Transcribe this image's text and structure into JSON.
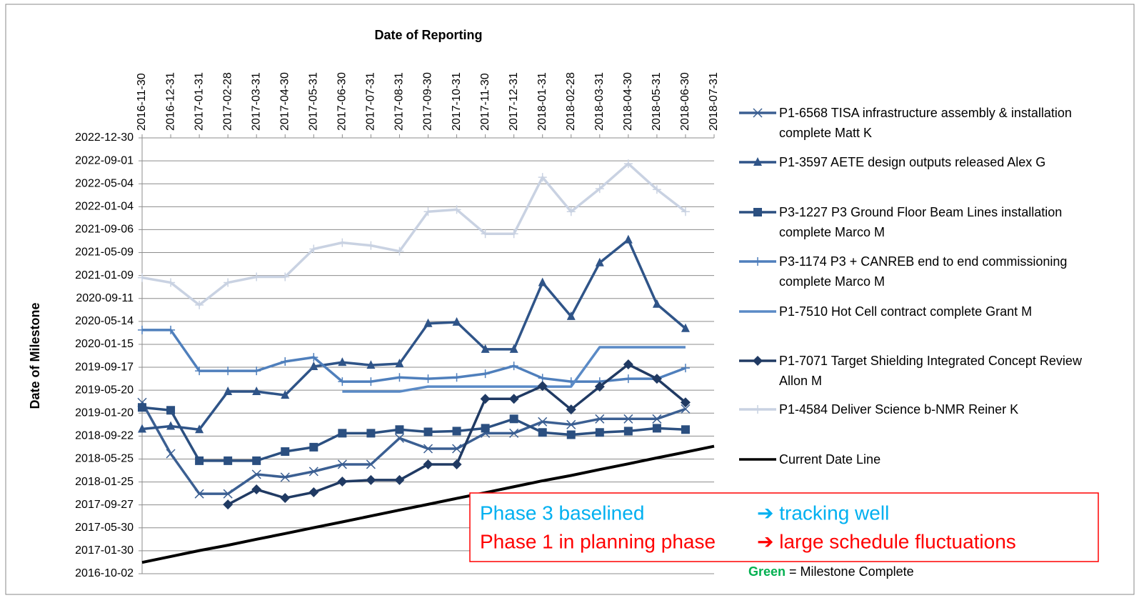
{
  "chart_data": {
    "type": "line",
    "x_title": "Date of Reporting",
    "y_title": "Date of Milestone",
    "categories": [
      "2016-11-30",
      "2016-12-31",
      "2017-01-31",
      "2017-02-28",
      "2017-03-31",
      "2017-04-30",
      "2017-05-31",
      "2017-06-30",
      "2017-07-31",
      "2017-08-31",
      "2017-09-30",
      "2017-10-31",
      "2017-11-30",
      "2017-12-31",
      "2018-01-31",
      "2018-02-28",
      "2018-03-31",
      "2018-04-30",
      "2018-05-31",
      "2018-06-30",
      "2018-07-31"
    ],
    "ylim": [
      "2016-10-02",
      "2022-12-30"
    ],
    "yticks": [
      "2016-10-02",
      "2017-01-30",
      "2017-05-30",
      "2017-09-27",
      "2018-01-25",
      "2018-05-25",
      "2018-09-22",
      "2019-01-20",
      "2019-05-20",
      "2019-09-17",
      "2020-01-15",
      "2020-05-14",
      "2020-09-11",
      "2021-01-09",
      "2021-05-09",
      "2021-09-06",
      "2022-01-04",
      "2022-05-04",
      "2022-09-01",
      "2022-12-30"
    ],
    "grid": true,
    "legend": "right",
    "series": [
      {
        "name": "P1-6568 TISA infrastructure assembly & installation complete Matt K",
        "color": "#3b5f92",
        "marker": "x",
        "values": [
          "2019-03-17",
          "2018-06-22",
          "2017-11-24",
          "2017-11-24",
          "2018-03-06",
          "2018-02-19",
          "2018-03-21",
          "2018-04-27",
          "2018-04-27",
          "2018-09-11",
          "2018-07-18",
          "2018-07-18",
          "2018-10-07",
          "2018-10-07",
          "2018-12-06",
          "2018-11-21",
          "2018-12-21",
          "2018-12-21",
          "2018-12-21",
          "2019-02-11",
          null
        ]
      },
      {
        "name": "P1-3597 AETE design outputs released Alex G",
        "color": "#2f5488",
        "marker": "triangle",
        "values": [
          "2018-10-29",
          "2018-11-13",
          "2018-10-26",
          "2019-05-13",
          "2019-05-13",
          "2019-04-24",
          "2019-09-21",
          "2019-10-13",
          "2019-09-28",
          "2019-10-06",
          "2020-05-03",
          "2020-05-10",
          "2019-12-20",
          "2019-12-20",
          "2020-12-03",
          "2020-06-09",
          "2021-03-17",
          "2021-07-15",
          "2020-08-12",
          "2020-04-07",
          null
        ]
      },
      {
        "name": "P3-1227 P3 Ground Floor Beam Lines installation complete Marco M",
        "color": "#2b4f80",
        "marker": "square",
        "values": [
          "2019-02-19",
          "2019-02-04",
          "2018-05-16",
          "2018-05-16",
          "2018-05-16",
          "2018-07-03",
          "2018-07-26",
          "2018-10-07",
          "2018-10-07",
          "2018-10-26",
          "2018-10-14",
          "2018-10-18",
          "2018-11-02",
          "2018-12-21",
          "2018-10-11",
          "2018-09-29",
          "2018-10-11",
          "2018-10-18",
          "2018-11-02",
          "2018-10-26",
          null
        ]
      },
      {
        "name": "P3-1174 P3 + CANREB end to end commissioning complete Marco M",
        "color": "#4f7fbc",
        "marker": "plus",
        "values": [
          "2020-03-30",
          "2020-03-30",
          "2019-08-29",
          "2019-08-29",
          "2019-08-29",
          "2019-10-17",
          "2019-11-08",
          "2019-07-04",
          "2019-07-04",
          "2019-07-26",
          "2019-07-19",
          "2019-07-26",
          "2019-08-14",
          "2019-09-24",
          "2019-07-22",
          "2019-07-04",
          "2019-07-04",
          "2019-07-19",
          "2019-07-19",
          "2019-09-13",
          null
        ]
      },
      {
        "name": "P1-7510 Hot Cell contract complete Grant M",
        "color": "#5a8ac6",
        "marker": "none",
        "values": [
          null,
          null,
          null,
          null,
          null,
          null,
          null,
          "2019-05-13",
          "2019-05-13",
          "2019-05-13",
          "2019-06-08",
          "2019-06-08",
          "2019-06-08",
          "2019-06-08",
          "2019-06-08",
          "2019-06-08",
          "2019-12-31",
          "2019-12-31",
          "2019-12-31",
          "2019-12-31",
          null
        ]
      },
      {
        "name": "P1-7071 Target Shielding Integrated Concept Review Allon M",
        "color": "#203a63",
        "marker": "diamond",
        "values": [
          null,
          null,
          null,
          "2017-09-29",
          "2017-12-17",
          "2017-11-02",
          "2017-12-02",
          "2018-01-27",
          "2018-02-04",
          "2018-02-04",
          "2018-04-27",
          "2018-04-27",
          "2019-04-05",
          "2019-04-05",
          "2019-06-11",
          "2019-02-08",
          "2019-06-08",
          "2019-10-02",
          "2019-07-19",
          "2019-03-17",
          null
        ]
      },
      {
        "name": "P1-4584 Deliver Science b-NMR Reiner K",
        "color": "#c9d2e2",
        "marker": "plus",
        "values": [
          "2020-12-29",
          "2020-12-03",
          "2020-08-08",
          "2020-12-03",
          "2021-01-02",
          "2021-01-02",
          "2021-05-28",
          "2021-06-30",
          "2021-06-15",
          "2021-05-16",
          "2021-12-09",
          "2021-12-20",
          "2021-08-15",
          "2021-08-15",
          "2022-06-07",
          "2021-12-09",
          "2022-04-08",
          "2022-08-17",
          "2022-04-04",
          "2021-12-09",
          null
        ]
      },
      {
        "name": "Current Date Line",
        "color": "#000000",
        "marker": "none",
        "values": [
          "2016-11-30",
          "2016-12-31",
          "2017-01-31",
          "2017-02-28",
          "2017-03-31",
          "2017-04-30",
          "2017-05-31",
          "2017-06-30",
          "2017-07-31",
          "2017-08-31",
          "2017-09-30",
          "2017-10-31",
          "2017-11-30",
          "2017-12-31",
          "2018-01-31",
          "2018-02-28",
          "2018-03-31",
          "2018-04-30",
          "2018-05-31",
          "2018-06-30",
          "2018-07-31"
        ]
      }
    ],
    "annotation": {
      "lines": [
        {
          "left": "Phase 3 baselined",
          "right": "➔ tracking well",
          "color": "#00b0f0"
        },
        {
          "left": "Phase 1 in planning phase",
          "right": "➔ large schedule fluctuations",
          "color": "#ff0000"
        }
      ],
      "border": "#ff0000"
    },
    "note": {
      "label": "Green",
      "text": "= Milestone Complete",
      "color": "#00b050"
    }
  }
}
